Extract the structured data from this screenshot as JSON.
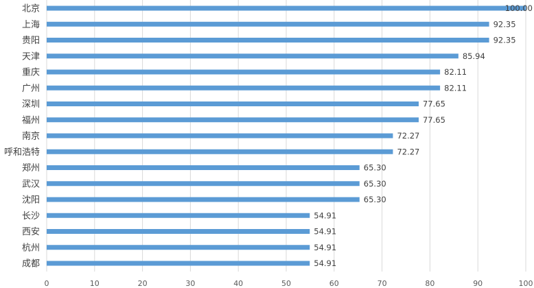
{
  "chart_data": {
    "type": "bar",
    "orientation": "horizontal",
    "title": "",
    "xlabel": "",
    "ylabel": "",
    "categories": [
      "北京",
      "上海",
      "贵阳",
      "天津",
      "重庆",
      "广州",
      "深圳",
      "福州",
      "南京",
      "呼和浩特",
      "郑州",
      "武汉",
      "沈阳",
      "长沙",
      "西安",
      "杭州",
      "成都"
    ],
    "values": [
      100.0,
      92.35,
      92.35,
      85.94,
      82.11,
      82.11,
      77.65,
      77.65,
      72.27,
      72.27,
      65.3,
      65.3,
      65.3,
      54.91,
      54.91,
      54.91,
      54.91
    ],
    "value_labels": [
      "100.00",
      "92.35",
      "92.35",
      "85.94",
      "82.11",
      "82.11",
      "77.65",
      "77.65",
      "72.27",
      "72.27",
      "65.30",
      "65.30",
      "65.30",
      "54.91",
      "54.91",
      "54.91",
      "54.91"
    ],
    "xlim": [
      0,
      100
    ],
    "x_ticks": [
      "0",
      "10",
      "20",
      "30",
      "40",
      "50",
      "60",
      "70",
      "80",
      "90",
      "100"
    ],
    "grid": "vertical",
    "legend": "none",
    "bar_color": "#5b9bd5",
    "grid_color": "#d9d9d9"
  }
}
